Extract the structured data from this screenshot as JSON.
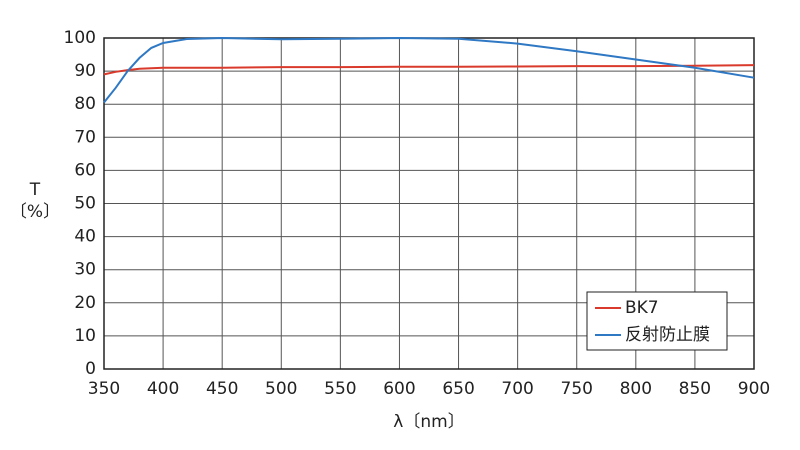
{
  "chart_data": {
    "type": "line",
    "xlabel": "λ〔nm〕",
    "ylabel": "T",
    "ylabel_unit": "〔%〕",
    "xlim": [
      350,
      900
    ],
    "xticks": [
      350,
      400,
      450,
      500,
      550,
      600,
      650,
      700,
      750,
      800,
      850,
      900
    ],
    "ylim": [
      0,
      100
    ],
    "yticks": [
      0,
      10,
      20,
      30,
      40,
      50,
      60,
      70,
      80,
      90,
      100
    ],
    "grid": true,
    "legend": "lower right",
    "series": [
      {
        "name": "BK7",
        "color": "#d93a2b",
        "x": [
          350,
          360,
          370,
          380,
          400,
          450,
          500,
          550,
          600,
          650,
          700,
          750,
          800,
          850,
          900
        ],
        "values": [
          89,
          89.8,
          90.3,
          90.7,
          91,
          91,
          91.2,
          91.2,
          91.3,
          91.3,
          91.4,
          91.5,
          91.5,
          91.6,
          91.8
        ]
      },
      {
        "name": "反射防止膜",
        "color": "#2f78c4",
        "x": [
          350,
          360,
          370,
          380,
          390,
          400,
          420,
          450,
          500,
          550,
          600,
          650,
          700,
          750,
          800,
          850,
          900
        ],
        "values": [
          80.5,
          85,
          90,
          94,
          97,
          98.5,
          99.7,
          100,
          99.6,
          99.8,
          100,
          99.8,
          98.3,
          96,
          93.5,
          91,
          88
        ]
      }
    ]
  }
}
